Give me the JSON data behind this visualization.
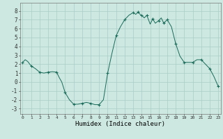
{
  "title": "",
  "xlabel": "Humidex (Indice chaleur)",
  "ylabel": "",
  "bg_color": "#cce8e0",
  "grid_color": "#aacec6",
  "line_color": "#1a6b5a",
  "marker_color": "#1a6b5a",
  "x_ticks": [
    0,
    1,
    2,
    3,
    4,
    5,
    6,
    7,
    8,
    9,
    10,
    11,
    12,
    13,
    14,
    15,
    16,
    17,
    18,
    19,
    20,
    21,
    22,
    23
  ],
  "y_ticks": [
    -3,
    -2,
    -1,
    0,
    1,
    2,
    3,
    4,
    5,
    6,
    7,
    8
  ],
  "xlim": [
    -0.3,
    23.3
  ],
  "ylim": [
    -3.6,
    8.9
  ],
  "data_x": [
    0,
    0.3,
    0.6,
    1.0,
    1.5,
    2.0,
    2.5,
    3.0,
    3.5,
    4.0,
    4.3,
    4.6,
    5.0,
    5.5,
    6.0,
    6.5,
    7.0,
    7.5,
    8.0,
    8.5,
    9.0,
    9.5,
    10.0,
    10.5,
    11.0,
    11.5,
    12.0,
    12.5,
    13.0,
    13.3,
    13.6,
    13.9,
    14.0,
    14.3,
    14.6,
    15.0,
    15.3,
    15.6,
    16.0,
    16.3,
    16.6,
    17.0,
    17.5,
    18.0,
    18.5,
    19.0,
    19.5,
    20.0,
    20.5,
    21.0,
    21.5,
    22.0,
    22.5,
    23.0
  ],
  "data_y": [
    2.2,
    2.5,
    2.3,
    1.8,
    1.5,
    1.1,
    1.0,
    1.1,
    1.15,
    1.1,
    0.5,
    0.0,
    -1.2,
    -2.0,
    -2.5,
    -2.5,
    -2.4,
    -2.3,
    -2.4,
    -2.55,
    -2.55,
    -2.0,
    1.0,
    3.2,
    5.2,
    6.2,
    7.0,
    7.5,
    7.8,
    7.6,
    7.85,
    7.5,
    7.5,
    7.2,
    7.5,
    6.5,
    7.1,
    6.6,
    6.9,
    7.2,
    6.6,
    7.0,
    6.2,
    4.3,
    2.9,
    2.2,
    2.2,
    2.2,
    2.5,
    2.5,
    2.0,
    1.5,
    0.6,
    -0.5
  ],
  "marker_x": [
    0,
    1,
    2,
    3,
    4,
    5,
    6,
    7,
    8,
    9,
    10,
    11,
    12,
    13,
    13.6,
    14,
    14.6,
    15.3,
    16,
    16.6,
    17,
    18,
    19,
    20,
    21,
    22,
    23
  ],
  "marker_y": [
    2.2,
    1.8,
    1.1,
    1.1,
    1.1,
    -1.2,
    -2.5,
    -2.4,
    -2.4,
    -2.55,
    1.0,
    5.2,
    7.0,
    7.8,
    7.85,
    7.5,
    7.5,
    7.1,
    6.9,
    6.6,
    7.0,
    4.3,
    2.2,
    2.2,
    2.5,
    1.5,
    -0.5
  ]
}
